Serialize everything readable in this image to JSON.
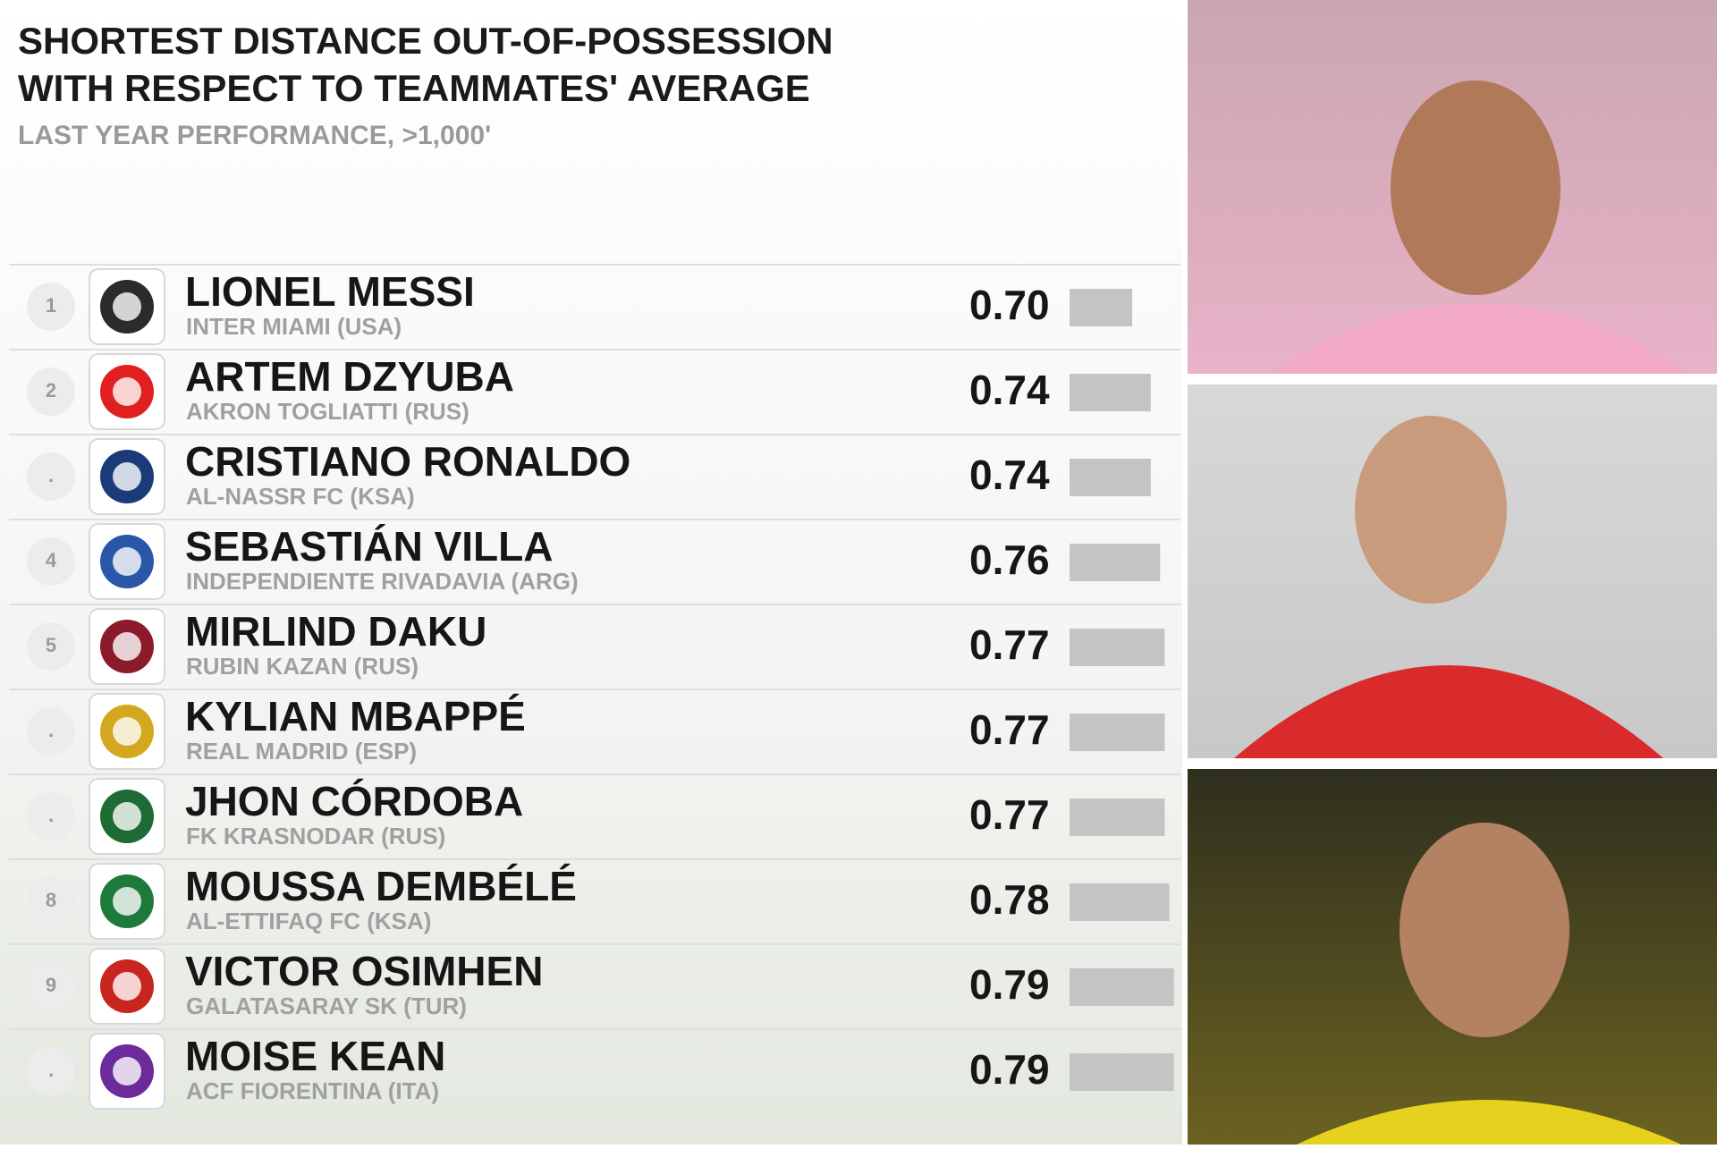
{
  "chart_data": {
    "type": "bar",
    "title": "SHORTEST DISTANCE OUT-OF-POSSESSION",
    "title_line2": "WITH RESPECT TO TEAMMATES' AVERAGE",
    "subtitle": "LAST YEAR PERFORMANCE, >1,000'",
    "ranks": [
      "1",
      "2",
      ".",
      "4",
      "5",
      ".",
      ".",
      "8",
      "9",
      "."
    ],
    "categories": [
      "LIONEL MESSI",
      "ARTEM DZYUBA",
      "CRISTIANO RONALDO",
      "SEBASTIÁN VILLA",
      "MIRLIND DAKU",
      "KYLIAN MBAPPÉ",
      "JHON CÓRDOBA",
      "MOUSSA DEMBÉLÉ",
      "VICTOR OSIMHEN",
      "MOISE KEAN"
    ],
    "teams": [
      "INTER MIAMI (USA)",
      "AKRON TOGLIATTI (RUS)",
      "AL-NASSR FC (KSA)",
      "INDEPENDIENTE RIVADAVIA (ARG)",
      "RUBIN KAZAN (RUS)",
      "REAL MADRID (ESP)",
      "FK KRASNODAR (RUS)",
      "AL-ETTIFAQ FC (KSA)",
      "GALATASARAY SK (TUR)",
      "ACF FIORENTINA (ITA)"
    ],
    "values": [
      0.7,
      0.74,
      0.74,
      0.76,
      0.77,
      0.77,
      0.77,
      0.78,
      0.79,
      0.79
    ],
    "value_labels": [
      "0.70",
      "0.74",
      "0.74",
      "0.76",
      "0.77",
      "0.77",
      "0.77",
      "0.78",
      "0.79",
      "0.79"
    ],
    "color": "#c4c4c4"
  }
}
